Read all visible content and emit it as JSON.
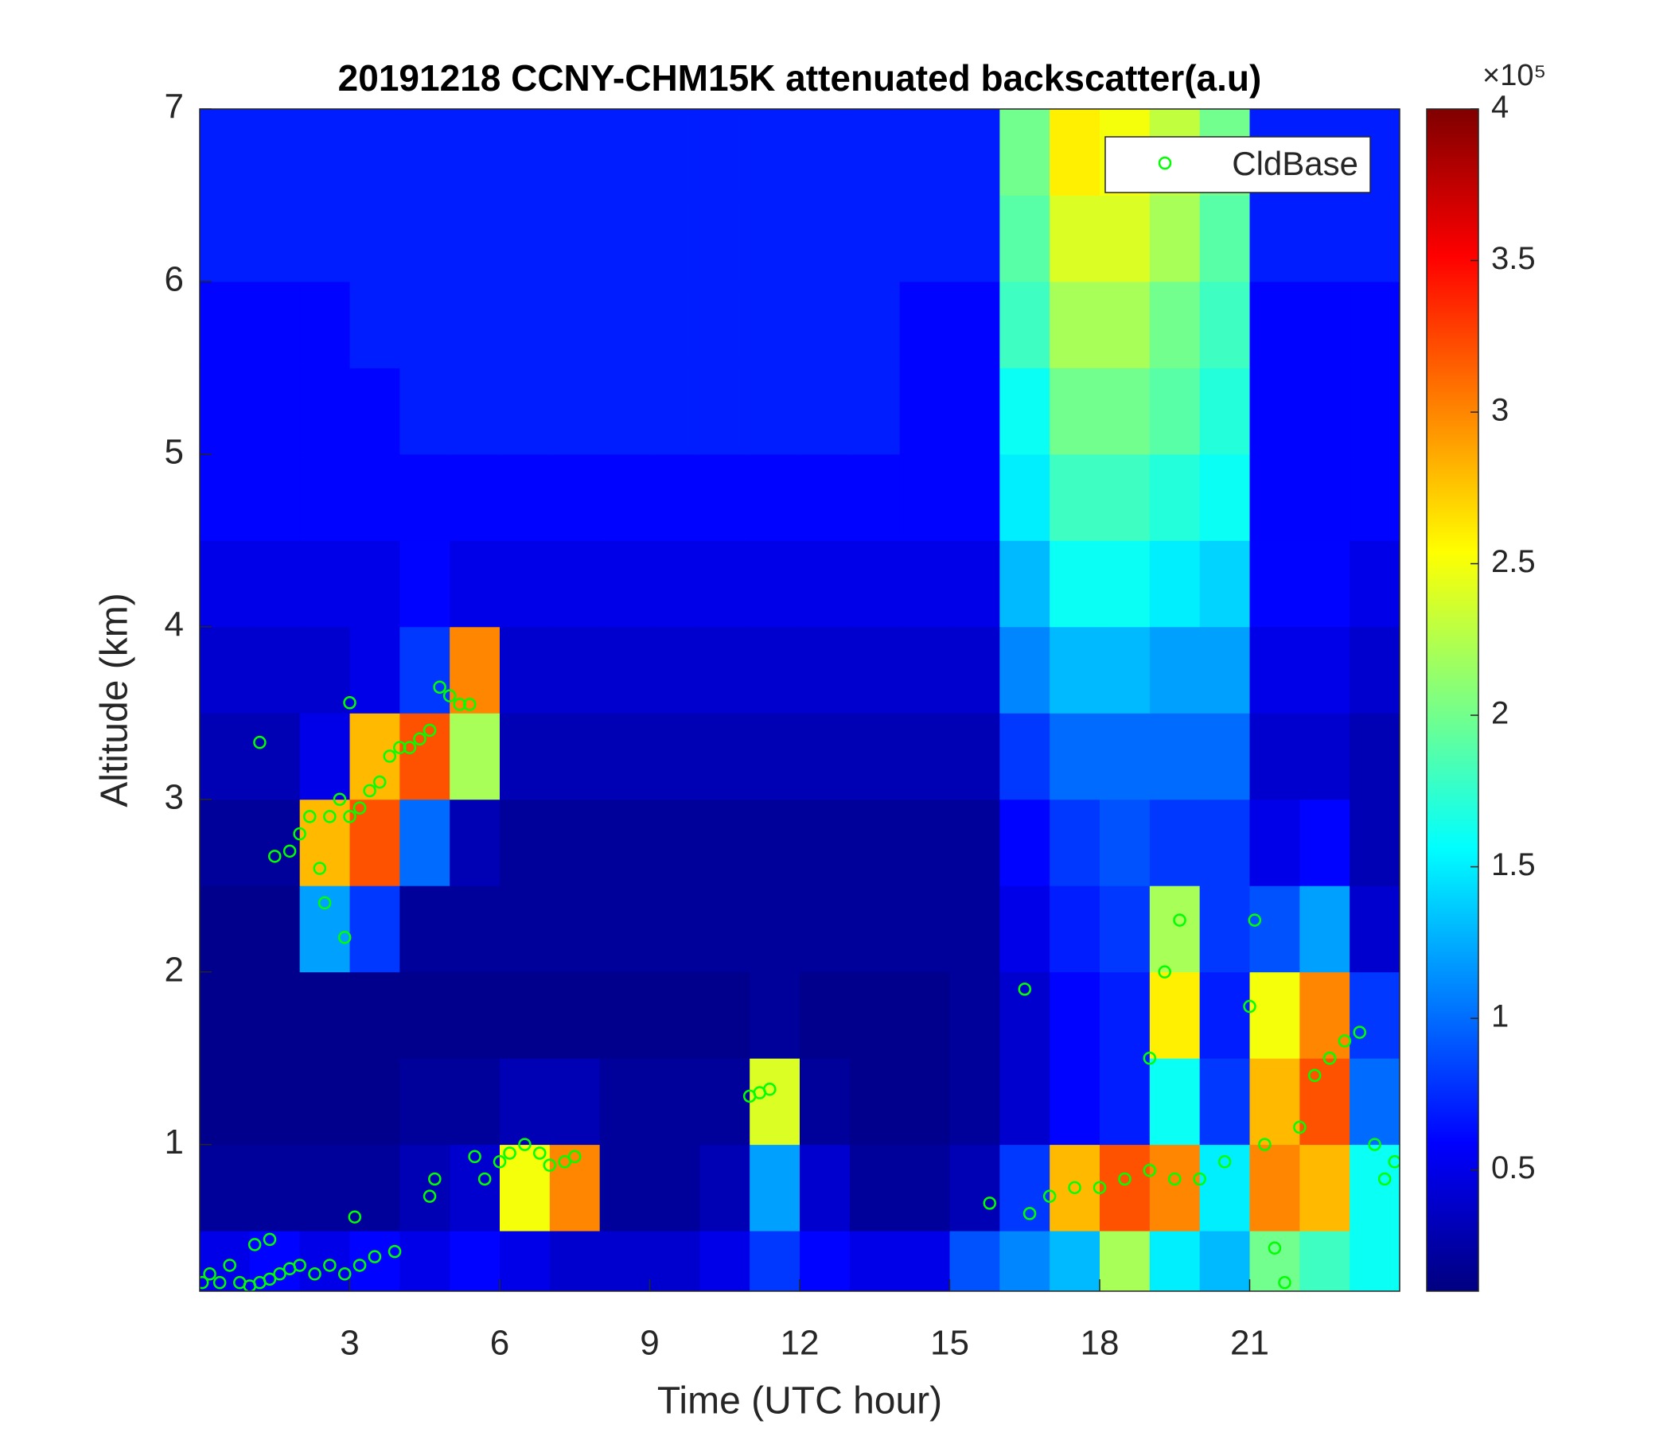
{
  "chart_data": {
    "type": "heatmap",
    "title": "20191218 CCNY-CHM15K attenuated backscatter(a.u)",
    "xlabel": "Time (UTC hour)",
    "ylabel": "Altitude (km)",
    "xlim": [
      0,
      24
    ],
    "xticks": [
      3,
      6,
      9,
      12,
      15,
      18,
      21
    ],
    "ylim": [
      0.15,
      7
    ],
    "yticks": [
      1,
      2,
      3,
      4,
      5,
      6,
      7
    ],
    "colormap": "jet",
    "clim": [
      0.1,
      4
    ],
    "colorbar_ticks": [
      0.5,
      1,
      1.5,
      2,
      2.5,
      3,
      3.5,
      4
    ],
    "colorbar_exponent_label": "×10⁵",
    "legend_location": "northeast",
    "x_bins": [
      0,
      1,
      2,
      3,
      4,
      5,
      6,
      7,
      8,
      9,
      10,
      11,
      12,
      13,
      14,
      15,
      16,
      17,
      18,
      19,
      20,
      21,
      22,
      23,
      24
    ],
    "y_bins": [
      0.15,
      0.5,
      1,
      1.5,
      2,
      2.5,
      3,
      3.5,
      4,
      4.5,
      5,
      5.5,
      6,
      6.5,
      7
    ],
    "values": [
      [
        0.5,
        0.6,
        0.5,
        0.6,
        0.5,
        0.6,
        0.5,
        0.4,
        0.4,
        0.4,
        0.5,
        0.8,
        0.6,
        0.5,
        0.5,
        0.9,
        1.1,
        1.3,
        2.2,
        1.5,
        1.3,
        2.0,
        1.8,
        1.6
      ],
      [
        0.2,
        0.2,
        0.2,
        0.2,
        0.3,
        0.4,
        2.5,
        3.0,
        0.2,
        0.2,
        0.3,
        1.2,
        0.4,
        0.2,
        0.2,
        0.3,
        0.8,
        2.8,
        3.2,
        3.0,
        1.5,
        3.0,
        2.8,
        1.6
      ],
      [
        0.15,
        0.15,
        0.15,
        0.15,
        0.2,
        0.2,
        0.3,
        0.3,
        0.2,
        0.2,
        0.2,
        2.4,
        0.2,
        0.15,
        0.15,
        0.2,
        0.4,
        0.6,
        0.7,
        1.6,
        0.8,
        2.8,
        3.2,
        1.0
      ],
      [
        0.15,
        0.15,
        0.15,
        0.15,
        0.15,
        0.15,
        0.15,
        0.15,
        0.15,
        0.15,
        0.15,
        0.2,
        0.15,
        0.15,
        0.15,
        0.2,
        0.4,
        0.6,
        0.7,
        2.6,
        0.7,
        2.5,
        3.0,
        0.8
      ],
      [
        0.15,
        0.15,
        1.2,
        0.8,
        0.2,
        0.2,
        0.2,
        0.2,
        0.2,
        0.2,
        0.2,
        0.2,
        0.2,
        0.2,
        0.2,
        0.2,
        0.5,
        0.7,
        0.8,
        2.2,
        0.8,
        0.9,
        1.2,
        0.4
      ],
      [
        0.2,
        0.2,
        2.8,
        3.2,
        1.0,
        0.3,
        0.2,
        0.2,
        0.2,
        0.2,
        0.2,
        0.2,
        0.2,
        0.2,
        0.2,
        0.2,
        0.6,
        0.8,
        0.9,
        0.8,
        0.8,
        0.5,
        0.6,
        0.3
      ],
      [
        0.3,
        0.3,
        0.5,
        2.8,
        3.2,
        2.2,
        0.3,
        0.3,
        0.3,
        0.3,
        0.3,
        0.3,
        0.3,
        0.3,
        0.3,
        0.3,
        0.8,
        1.0,
        1.0,
        1.0,
        1.0,
        0.4,
        0.4,
        0.3
      ],
      [
        0.4,
        0.4,
        0.4,
        0.5,
        0.8,
        3.0,
        0.4,
        0.4,
        0.4,
        0.4,
        0.4,
        0.4,
        0.4,
        0.4,
        0.4,
        0.4,
        1.1,
        1.3,
        1.3,
        1.2,
        1.2,
        0.5,
        0.5,
        0.4
      ],
      [
        0.5,
        0.5,
        0.5,
        0.5,
        0.6,
        0.5,
        0.5,
        0.5,
        0.5,
        0.5,
        0.5,
        0.5,
        0.5,
        0.5,
        0.5,
        0.5,
        1.3,
        1.6,
        1.6,
        1.5,
        1.4,
        0.6,
        0.6,
        0.5
      ],
      [
        0.6,
        0.6,
        0.6,
        0.6,
        0.6,
        0.6,
        0.6,
        0.6,
        0.6,
        0.6,
        0.6,
        0.6,
        0.6,
        0.6,
        0.6,
        0.6,
        1.5,
        1.8,
        1.8,
        1.7,
        1.6,
        0.6,
        0.6,
        0.6
      ],
      [
        0.6,
        0.6,
        0.6,
        0.6,
        0.7,
        0.7,
        0.7,
        0.7,
        0.7,
        0.7,
        0.7,
        0.7,
        0.7,
        0.7,
        0.6,
        0.6,
        1.6,
        2.0,
        2.0,
        1.9,
        1.7,
        0.6,
        0.6,
        0.6
      ],
      [
        0.6,
        0.6,
        0.6,
        0.7,
        0.7,
        0.7,
        0.7,
        0.7,
        0.7,
        0.7,
        0.7,
        0.7,
        0.7,
        0.7,
        0.6,
        0.6,
        1.8,
        2.2,
        2.2,
        2.0,
        1.8,
        0.6,
        0.6,
        0.6
      ],
      [
        0.7,
        0.7,
        0.7,
        0.7,
        0.7,
        0.7,
        0.7,
        0.7,
        0.7,
        0.7,
        0.7,
        0.7,
        0.7,
        0.7,
        0.7,
        0.7,
        1.9,
        2.4,
        2.4,
        2.2,
        1.9,
        0.7,
        0.7,
        0.7
      ],
      [
        0.7,
        0.7,
        0.7,
        0.7,
        0.7,
        0.7,
        0.7,
        0.7,
        0.7,
        0.7,
        0.7,
        0.7,
        0.7,
        0.7,
        0.7,
        0.7,
        2.0,
        2.6,
        2.5,
        2.3,
        2.0,
        0.7,
        0.7,
        0.7
      ]
    ],
    "series": [
      {
        "name": "CldBase",
        "type": "scatter",
        "color": "#00ff00",
        "x": [
          0.05,
          0.2,
          0.4,
          0.6,
          0.8,
          1,
          1.2,
          1.4,
          1.6,
          1.8,
          2,
          2.3,
          2.6,
          2.9,
          3.2,
          3.5,
          3.9,
          1.1,
          1.4,
          3.1,
          1.2,
          1.5,
          1.8,
          2.0,
          2.2,
          2.4,
          2.5,
          2.6,
          2.8,
          2.9,
          3.0,
          3.2,
          3.4,
          3.6,
          3.8,
          4.0,
          4.2,
          4.4,
          4.6,
          4.8,
          5.0,
          5.2,
          5.4,
          3.0,
          4.6,
          4.7,
          5.5,
          5.7,
          6.0,
          6.2,
          6.5,
          6.8,
          7.0,
          7.3,
          7.5,
          11,
          11.2,
          11.4,
          15.8,
          16.5,
          16.6,
          17,
          17.5,
          18,
          18.5,
          19,
          19.5,
          20,
          19.3,
          19.6,
          19.0,
          20.5,
          21,
          21.1,
          21.3,
          21.5,
          21.7,
          22,
          22.3,
          22.6,
          22.9,
          23.2,
          23.5,
          23.7,
          23.9
        ],
        "y": [
          0.2,
          0.25,
          0.2,
          0.3,
          0.2,
          0.18,
          0.2,
          0.22,
          0.25,
          0.28,
          0.3,
          0.25,
          0.3,
          0.25,
          0.3,
          0.35,
          0.38,
          0.42,
          0.45,
          0.58,
          3.33,
          2.67,
          2.7,
          2.8,
          2.9,
          2.6,
          2.4,
          2.9,
          3.0,
          2.2,
          2.9,
          2.95,
          3.05,
          3.1,
          3.25,
          3.3,
          3.3,
          3.35,
          3.4,
          3.65,
          3.6,
          3.55,
          3.55,
          3.56,
          0.7,
          0.8,
          0.93,
          0.8,
          0.9,
          0.95,
          1.0,
          0.95,
          0.88,
          0.9,
          0.93,
          1.28,
          1.3,
          1.32,
          0.66,
          1.9,
          0.6,
          0.7,
          0.75,
          0.75,
          0.8,
          0.85,
          0.8,
          0.8,
          2.0,
          2.3,
          1.5,
          0.9,
          1.8,
          2.3,
          1.0,
          0.4,
          0.2,
          1.1,
          1.4,
          1.5,
          1.6,
          1.65,
          1.0,
          0.8,
          0.9
        ]
      }
    ]
  }
}
